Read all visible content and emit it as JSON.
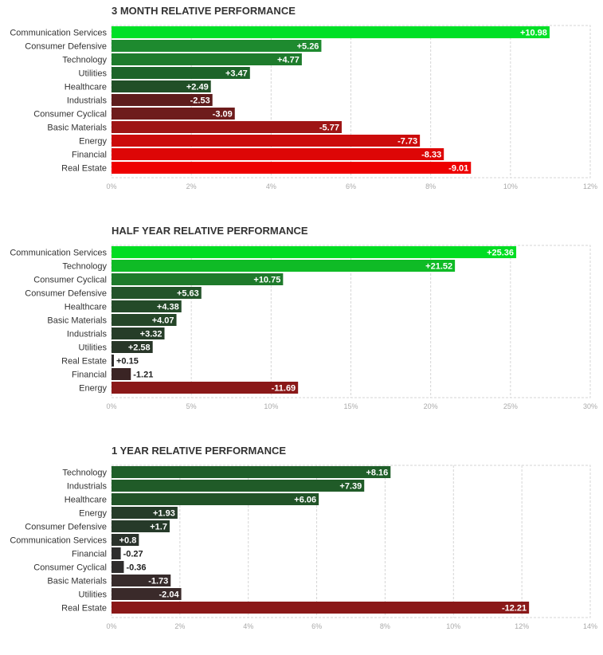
{
  "chart_data": [
    {
      "type": "bar",
      "orientation": "horizontal",
      "title": "3 MONTH RELATIVE PERFORMANCE",
      "categories": [
        "Communication Services",
        "Consumer Defensive",
        "Technology",
        "Utilities",
        "Healthcare",
        "Industrials",
        "Consumer Cyclical",
        "Basic Materials",
        "Energy",
        "Financial",
        "Real Estate"
      ],
      "values": [
        10.98,
        5.26,
        4.77,
        3.47,
        2.49,
        -2.53,
        -3.09,
        -5.77,
        -7.73,
        -8.33,
        -9.01
      ],
      "value_labels": [
        "+10.98",
        "+5.26",
        "+4.77",
        "+3.47",
        "+2.49",
        "-2.53",
        "-3.09",
        "-5.77",
        "-7.73",
        "-8.33",
        "-9.01"
      ],
      "bar_colors": [
        "#00e026",
        "#1e8a2f",
        "#1e7b2c",
        "#1d6429",
        "#214f27",
        "#5e1c1c",
        "#6e1c1c",
        "#9e1515",
        "#cc0b0b",
        "#dd0606",
        "#ee0000"
      ],
      "xlim": [
        0,
        12
      ],
      "xticks": [
        "0%",
        "2%",
        "4%",
        "6%",
        "8%",
        "10%",
        "12%"
      ],
      "xlabel": "",
      "ylabel": "",
      "grid": true
    },
    {
      "type": "bar",
      "orientation": "horizontal",
      "title": "HALF YEAR RELATIVE PERFORMANCE",
      "categories": [
        "Communication Services",
        "Technology",
        "Consumer Cyclical",
        "Consumer Defensive",
        "Healthcare",
        "Basic Materials",
        "Industrials",
        "Utilities",
        "Real Estate",
        "Financial",
        "Energy"
      ],
      "values": [
        25.36,
        21.52,
        10.75,
        5.63,
        4.38,
        4.07,
        3.32,
        2.58,
        0.15,
        -1.21,
        -11.69
      ],
      "value_labels": [
        "+25.36",
        "+21.52",
        "+10.75",
        "+5.63",
        "+4.38",
        "+4.07",
        "+3.32",
        "+2.58",
        "+0.15",
        "-1.21",
        "-11.69"
      ],
      "bar_colors": [
        "#00dd22",
        "#0fbb26",
        "#1e7a2b",
        "#23542a",
        "#244a29",
        "#254628",
        "#263d28",
        "#283628",
        "#2f2c2c",
        "#3a2424",
        "#8a1818"
      ],
      "xlim": [
        0,
        30
      ],
      "xticks": [
        "0%",
        "5%",
        "10%",
        "15%",
        "20%",
        "25%",
        "30%"
      ],
      "xlabel": "",
      "ylabel": "",
      "grid": true
    },
    {
      "type": "bar",
      "orientation": "horizontal",
      "title": "1 YEAR RELATIVE PERFORMANCE",
      "categories": [
        "Technology",
        "Industrials",
        "Healthcare",
        "Energy",
        "Consumer Defensive",
        "Communication Services",
        "Financial",
        "Consumer Cyclical",
        "Basic Materials",
        "Utilities",
        "Real Estate"
      ],
      "values": [
        8.16,
        7.39,
        6.06,
        1.93,
        1.7,
        0.8,
        -0.27,
        -0.36,
        -1.73,
        -2.04,
        -12.21
      ],
      "value_labels": [
        "+8.16",
        "+7.39",
        "+6.06",
        "+1.93",
        "+1.7",
        "+0.8",
        "-0.27",
        "-0.36",
        "-1.73",
        "-2.04",
        "-12.21"
      ],
      "bar_colors": [
        "#1f5f29",
        "#205b28",
        "#215327",
        "#263c29",
        "#263a29",
        "#2a322b",
        "#2e2e2e",
        "#2f2d2d",
        "#372b2b",
        "#3a2a2a",
        "#8a1818"
      ],
      "xlim": [
        0,
        14
      ],
      "xticks": [
        "0%",
        "2%",
        "4%",
        "6%",
        "8%",
        "10%",
        "12%",
        "14%"
      ],
      "xlabel": "",
      "ylabel": "",
      "grid": true
    }
  ]
}
